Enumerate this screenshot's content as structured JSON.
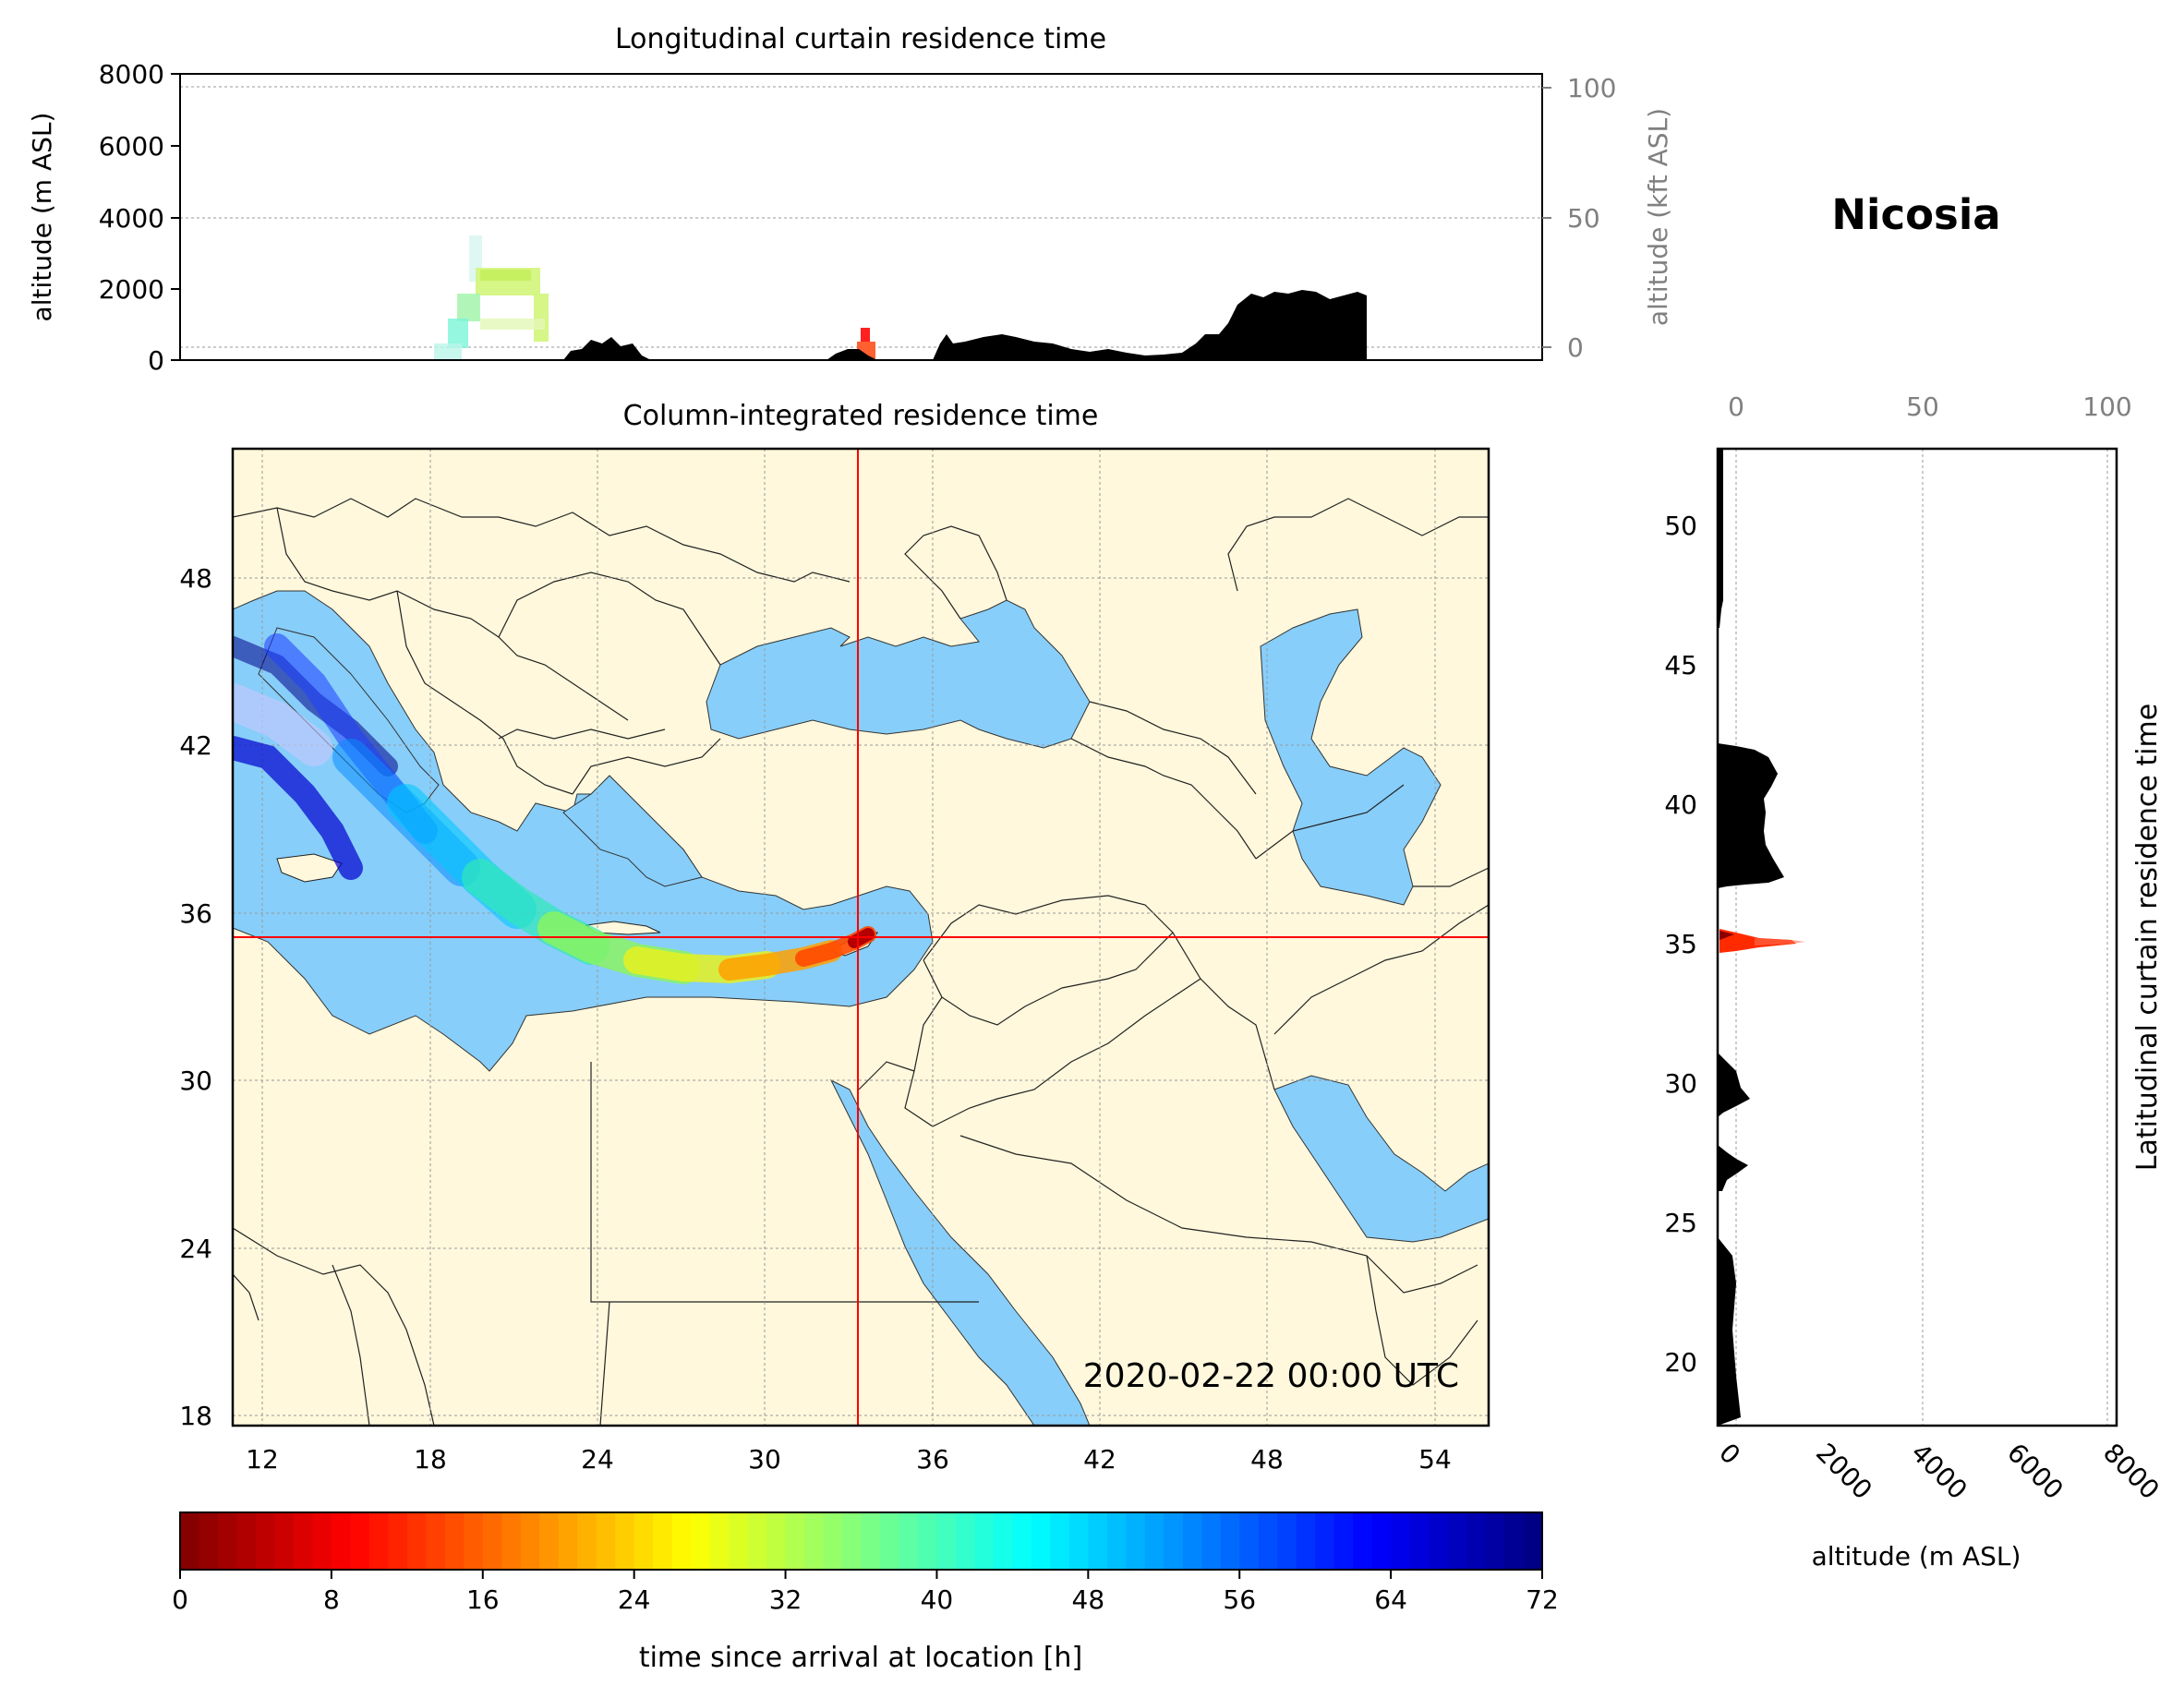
{
  "location_name": "Nicosia",
  "datetime_label": "2020-02-22 00:00 UTC",
  "colors": {
    "land": "#fff8dc",
    "sea": "#87cefa",
    "terrain": "#000000",
    "receptor_lines": "#ff0000",
    "grid": "#999999"
  },
  "colormap": "jet_r",
  "receptor": {
    "lon": 33.4,
    "lat": 35.2
  },
  "chart_data": [
    {
      "id": "longitudinal-curtain",
      "type": "heatmap",
      "title": "Longitudinal curtain residence time",
      "ylabel": "altitude (m ASL)",
      "ylabel_right": "altitude (kft ASL)",
      "yticks": [
        "0",
        "2000",
        "4000",
        "6000",
        "8000"
      ],
      "yticks_right": [
        "0",
        "50",
        "100"
      ],
      "ylim": [
        0,
        8000
      ],
      "xlim": [
        9.9,
        58.8
      ]
    },
    {
      "id": "column-integrated",
      "type": "heatmap",
      "title": "Column-integrated residence time",
      "xticks": [
        "12",
        "18",
        "24",
        "30",
        "36",
        "42",
        "48",
        "54"
      ],
      "yticks": [
        "18",
        "24",
        "30",
        "36",
        "42",
        "48"
      ],
      "xlim": [
        10.8,
        55.8
      ],
      "ylim": [
        18,
        53
      ]
    },
    {
      "id": "latitudinal-curtain",
      "type": "heatmap",
      "title": "Latitudinal curtain residence time",
      "xlabel": "altitude (m ASL)",
      "xticks": [
        "0",
        "2000",
        "4000",
        "6000",
        "8000"
      ],
      "xticks_top": [
        "0",
        "50",
        "100"
      ],
      "yticks": [
        "20",
        "25",
        "30",
        "35",
        "40",
        "45",
        "50"
      ],
      "xlim": [
        0,
        8000
      ],
      "ylim": [
        17.6,
        52.7
      ]
    },
    {
      "id": "colorbar",
      "type": "heatmap",
      "label": "time since arrival at location [h]",
      "ticks": [
        "0",
        "8",
        "16",
        "24",
        "32",
        "40",
        "48",
        "56",
        "64",
        "72"
      ],
      "range": [
        0,
        72
      ]
    }
  ]
}
